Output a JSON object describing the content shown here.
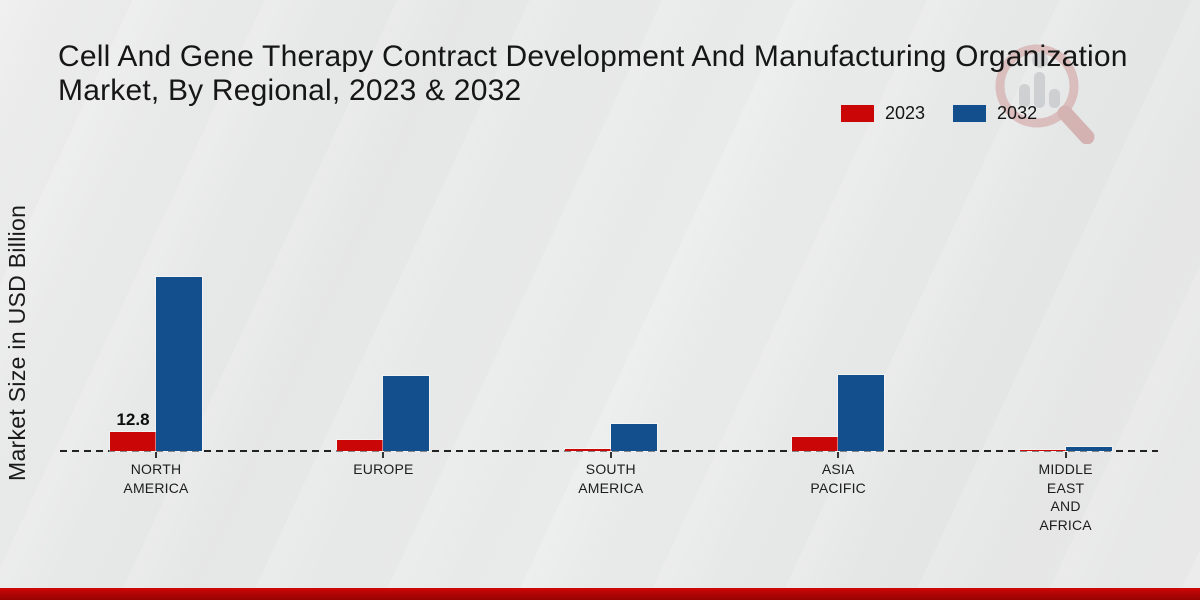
{
  "header": {
    "title_line1": "Cell And Gene Therapy Contract Development And Manufacturing Organization",
    "title_line2": "Market, By Regional, 2023 & 2032"
  },
  "ylabel": "Market Size in USD Billion",
  "chart_data": {
    "type": "bar",
    "title": "Cell And Gene Therapy Contract Development And Manufacturing Organization Market, By Regional, 2023 & 2032",
    "xlabel": "",
    "ylabel": "Market Size in USD Billion",
    "units": "USD Billion",
    "categories": [
      "North America",
      "Europe",
      "South America",
      "Asia Pacific",
      "Middle East and Africa"
    ],
    "category_label_lines": [
      [
        "NORTH",
        "AMERICA"
      ],
      [
        "EUROPE"
      ],
      [
        "SOUTH",
        "AMERICA"
      ],
      [
        "ASIA",
        "PACIFIC"
      ],
      [
        "MIDDLE",
        "EAST",
        "AND",
        "AFRICA"
      ]
    ],
    "series": [
      {
        "name": "2023",
        "color": "#cb0606",
        "values": [
          12.8,
          7.4,
          1.6,
          9.4,
          1.0
        ]
      },
      {
        "name": "2032",
        "color": "#134f8c",
        "values": [
          117.0,
          50.5,
          18.0,
          51.5,
          2.7
        ]
      }
    ],
    "data_labels": [
      {
        "series": "2023",
        "category": "North America",
        "text": "12.8"
      }
    ],
    "ylim": [
      0,
      125
    ],
    "grid": "none (dashed zero baseline only)",
    "legend_position": "top-right",
    "axis_ticks": "category ticks below baseline, no numeric y ticks"
  },
  "footer": {
    "bar_color": "#b30505"
  }
}
